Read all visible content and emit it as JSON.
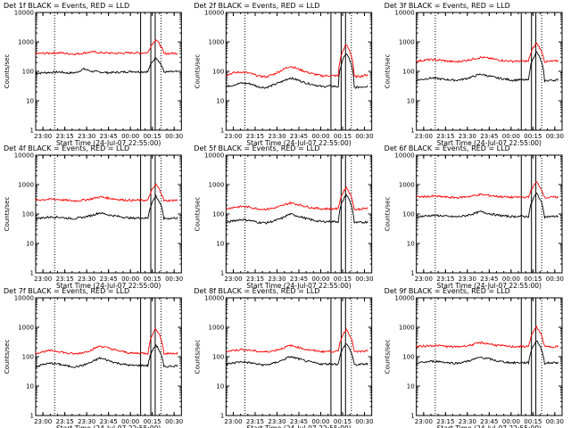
{
  "chart_data": [
    {
      "type": "line",
      "title": "Det 1f BLACK = Events, RED = LLD",
      "xlabel": "Start Time (24-Jul-07 22:55:00)",
      "ylabel": "Counts/sec",
      "yscale": "log",
      "ylim": [
        1,
        10000
      ],
      "yticks": [
        "1",
        "10",
        "100",
        "1000",
        "10000"
      ],
      "xlim": [
        "22:55",
        "00:35"
      ],
      "xticks": [
        "23:00",
        "23:15",
        "23:30",
        "23:45",
        "00:00",
        "00:15",
        "00:30"
      ],
      "series": [
        {
          "color": "#000000",
          "values": [
            85,
            90,
            92,
            95,
            88,
            90,
            120,
            100,
            95,
            90,
            92,
            95,
            100,
            96,
            98,
            300,
            95,
            96,
            98
          ]
        },
        {
          "color": "#ff0000",
          "values": [
            400,
            410,
            420,
            430,
            400,
            390,
            420,
            460,
            430,
            420,
            410,
            420,
            430,
            420,
            430,
            1200,
            400,
            410,
            420
          ]
        }
      ]
    },
    {
      "type": "line",
      "title": "Det 2f BLACK = Events, RED = LLD",
      "xlabel": "Start Time (24-Jul-07 22:55:00)",
      "ylabel": "Counts/sec",
      "yscale": "log",
      "ylim": [
        1,
        10000
      ],
      "yticks": [
        "1",
        "10",
        "100",
        "1000",
        "10000"
      ],
      "xlim": [
        "22:55",
        "00:35"
      ],
      "xticks": [
        "23:00",
        "23:15",
        "23:30",
        "23:45",
        "00:00",
        "00:15",
        "00:30"
      ],
      "series": [
        {
          "color": "#000000",
          "values": [
            30,
            35,
            40,
            38,
            30,
            28,
            35,
            45,
            60,
            50,
            40,
            35,
            30,
            32,
            30,
            400,
            28,
            30,
            32
          ]
        },
        {
          "color": "#ff0000",
          "values": [
            75,
            90,
            95,
            85,
            70,
            65,
            80,
            110,
            150,
            120,
            95,
            80,
            70,
            72,
            70,
            800,
            65,
            70,
            80
          ]
        }
      ]
    },
    {
      "type": "line",
      "title": "Det 3f BLACK = Events, RED = LLD",
      "xlabel": "Start Time (24-Jul-07 22:55:00)",
      "ylabel": "Counts/sec",
      "yscale": "log",
      "ylim": [
        1,
        10000
      ],
      "yticks": [
        "1",
        "10",
        "100",
        "1000",
        "10000"
      ],
      "xlim": [
        "22:55",
        "00:35"
      ],
      "xticks": [
        "23:00",
        "23:15",
        "23:30",
        "23:45",
        "00:00",
        "00:15",
        "00:30"
      ],
      "series": [
        {
          "color": "#000000",
          "values": [
            50,
            55,
            60,
            55,
            52,
            50,
            55,
            65,
            80,
            70,
            60,
            55,
            50,
            52,
            50,
            450,
            48,
            50,
            52
          ]
        },
        {
          "color": "#ff0000",
          "values": [
            220,
            240,
            250,
            240,
            220,
            210,
            230,
            260,
            300,
            280,
            250,
            230,
            220,
            225,
            220,
            900,
            210,
            220,
            230
          ]
        }
      ]
    },
    {
      "type": "line",
      "title": "Det 4f BLACK = Events, RED = LLD",
      "xlabel": "Start Time (24-Jul-07 22:55:00)",
      "ylabel": "Counts/sec",
      "yscale": "log",
      "ylim": [
        1,
        10000
      ],
      "yticks": [
        "1",
        "10",
        "100",
        "1000",
        "10000"
      ],
      "xlim": [
        "22:55",
        "00:35"
      ],
      "xticks": [
        "23:00",
        "23:15",
        "23:30",
        "23:45",
        "00:00",
        "00:15",
        "00:30"
      ],
      "series": [
        {
          "color": "#000000",
          "values": [
            70,
            75,
            80,
            78,
            72,
            70,
            78,
            90,
            110,
            95,
            85,
            78,
            72,
            74,
            72,
            400,
            70,
            72,
            75
          ]
        },
        {
          "color": "#ff0000",
          "values": [
            300,
            310,
            320,
            310,
            290,
            280,
            300,
            330,
            380,
            350,
            320,
            300,
            290,
            295,
            290,
            1000,
            280,
            290,
            300
          ]
        }
      ]
    },
    {
      "type": "line",
      "title": "Det 5f BLACK = Events, RED = LLD",
      "xlabel": "Start Time (24-Jul-07 22:55:00)",
      "ylabel": "Counts/sec",
      "yscale": "log",
      "ylim": [
        1,
        10000
      ],
      "yticks": [
        "1",
        "10",
        "100",
        "1000",
        "10000"
      ],
      "xlim": [
        "22:55",
        "00:35"
      ],
      "xticks": [
        "23:00",
        "23:15",
        "23:30",
        "23:45",
        "00:00",
        "00:15",
        "00:30"
      ],
      "series": [
        {
          "color": "#000000",
          "values": [
            50,
            60,
            65,
            60,
            52,
            50,
            58,
            72,
            100,
            85,
            70,
            60,
            55,
            56,
            55,
            450,
            50,
            52,
            55
          ]
        },
        {
          "color": "#ff0000",
          "values": [
            150,
            170,
            180,
            170,
            150,
            145,
            160,
            190,
            240,
            210,
            180,
            160,
            150,
            152,
            150,
            800,
            140,
            150,
            160
          ]
        }
      ]
    },
    {
      "type": "line",
      "title": "Det 6f BLACK = Events, RED = LLD",
      "xlabel": "Start Time (24-Jul-07 22:55:00)",
      "ylabel": "Counts/sec",
      "yscale": "log",
      "ylim": [
        1,
        10000
      ],
      "yticks": [
        "1",
        "10",
        "100",
        "1000",
        "10000"
      ],
      "xlim": [
        "22:55",
        "00:35"
      ],
      "xticks": [
        "23:00",
        "23:15",
        "23:30",
        "23:45",
        "00:00",
        "00:15",
        "00:30"
      ],
      "series": [
        {
          "color": "#000000",
          "values": [
            80,
            85,
            90,
            88,
            82,
            80,
            86,
            100,
            120,
            105,
            92,
            86,
            82,
            84,
            82,
            500,
            80,
            82,
            85
          ]
        },
        {
          "color": "#ff0000",
          "values": [
            380,
            390,
            400,
            390,
            370,
            360,
            380,
            410,
            460,
            430,
            400,
            380,
            370,
            375,
            370,
            1200,
            360,
            370,
            380
          ]
        }
      ]
    },
    {
      "type": "line",
      "title": "Det 7f BLACK = Events, RED = LLD",
      "xlabel": "Start Time (24-Jul-07 22:55:00)",
      "ylabel": "Counts/sec",
      "yscale": "log",
      "ylim": [
        1,
        10000
      ],
      "yticks": [
        "1",
        "10",
        "100",
        "1000",
        "10000"
      ],
      "xlim": [
        "22:55",
        "00:35"
      ],
      "xticks": [
        "23:00",
        "23:15",
        "23:30",
        "23:45",
        "00:00",
        "00:15",
        "00:30"
      ],
      "series": [
        {
          "color": "#000000",
          "values": [
            45,
            55,
            60,
            55,
            48,
            45,
            52,
            65,
            90,
            75,
            62,
            55,
            50,
            51,
            50,
            250,
            45,
            48,
            50
          ]
        },
        {
          "color": "#ff0000",
          "values": [
            130,
            150,
            160,
            150,
            130,
            125,
            140,
            170,
            230,
            200,
            165,
            145,
            130,
            132,
            130,
            900,
            125,
            130,
            135
          ]
        }
      ]
    },
    {
      "type": "line",
      "title": "Det 8f BLACK = Events, RED = LLD",
      "xlabel": "Start Time (24-Jul-07 22:55:00)",
      "ylabel": "Counts/sec",
      "yscale": "log",
      "ylim": [
        1,
        10000
      ],
      "yticks": [
        "1",
        "10",
        "100",
        "1000",
        "10000"
      ],
      "xlim": [
        "22:55",
        "00:35"
      ],
      "xticks": [
        "23:00",
        "23:15",
        "23:30",
        "23:45",
        "00:00",
        "00:15",
        "00:30"
      ],
      "series": [
        {
          "color": "#000000",
          "values": [
            55,
            62,
            68,
            62,
            55,
            52,
            60,
            75,
            100,
            85,
            70,
            62,
            56,
            57,
            56,
            280,
            52,
            55,
            58
          ]
        },
        {
          "color": "#ff0000",
          "values": [
            150,
            165,
            175,
            165,
            150,
            145,
            160,
            190,
            240,
            210,
            175,
            160,
            150,
            152,
            150,
            850,
            145,
            150,
            155
          ]
        }
      ]
    },
    {
      "type": "line",
      "title": "Det 9f BLACK = Events, RED = LLD",
      "xlabel": "Start Time (24-Jul-07 22:55:00)",
      "ylabel": "Counts/sec",
      "yscale": "log",
      "ylim": [
        1,
        10000
      ],
      "yticks": [
        "1",
        "10",
        "100",
        "1000",
        "10000"
      ],
      "xlim": [
        "22:55",
        "00:35"
      ],
      "xticks": [
        "23:00",
        "23:15",
        "23:30",
        "23:45",
        "00:00",
        "00:15",
        "00:30"
      ],
      "series": [
        {
          "color": "#000000",
          "values": [
            60,
            65,
            70,
            68,
            62,
            60,
            66,
            78,
            95,
            85,
            72,
            66,
            62,
            63,
            62,
            350,
            60,
            62,
            64
          ]
        },
        {
          "color": "#ff0000",
          "values": [
            220,
            230,
            240,
            235,
            220,
            215,
            230,
            255,
            300,
            275,
            245,
            230,
            220,
            222,
            220,
            1000,
            215,
            220,
            225
          ]
        }
      ]
    }
  ]
}
